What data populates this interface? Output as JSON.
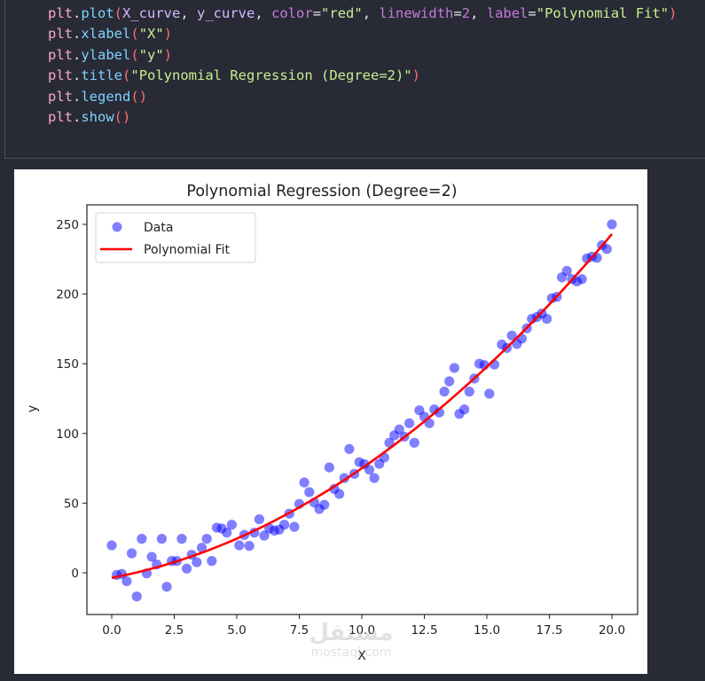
{
  "code_cell": {
    "lines": [
      [
        {
          "t": "plt",
          "c": "obj"
        },
        {
          "t": ".",
          "c": "dot"
        },
        {
          "t": "plot",
          "c": "fn"
        },
        {
          "t": "(",
          "c": "paren"
        },
        {
          "t": "X_curve",
          "c": "var"
        },
        {
          "t": ", ",
          "c": "plain"
        },
        {
          "t": "y_curve",
          "c": "var"
        },
        {
          "t": ", ",
          "c": "plain"
        },
        {
          "t": "color",
          "c": "kw"
        },
        {
          "t": "=",
          "c": "plain"
        },
        {
          "t": "\"red\"",
          "c": "str"
        },
        {
          "t": ", ",
          "c": "plain"
        },
        {
          "t": "linewidth",
          "c": "kw"
        },
        {
          "t": "=",
          "c": "plain"
        },
        {
          "t": "2",
          "c": "num"
        },
        {
          "t": ", ",
          "c": "plain"
        },
        {
          "t": "label",
          "c": "kw"
        },
        {
          "t": "=",
          "c": "plain"
        },
        {
          "t": "\"Polynomial Fit\"",
          "c": "str"
        },
        {
          "t": ")",
          "c": "paren"
        }
      ],
      [
        {
          "t": "plt",
          "c": "obj"
        },
        {
          "t": ".",
          "c": "dot"
        },
        {
          "t": "xlabel",
          "c": "fn"
        },
        {
          "t": "(",
          "c": "paren"
        },
        {
          "t": "\"X\"",
          "c": "str"
        },
        {
          "t": ")",
          "c": "paren"
        }
      ],
      [
        {
          "t": "plt",
          "c": "obj"
        },
        {
          "t": ".",
          "c": "dot"
        },
        {
          "t": "ylabel",
          "c": "fn"
        },
        {
          "t": "(",
          "c": "paren"
        },
        {
          "t": "\"y\"",
          "c": "str"
        },
        {
          "t": ")",
          "c": "paren"
        }
      ],
      [
        {
          "t": "plt",
          "c": "obj"
        },
        {
          "t": ".",
          "c": "dot"
        },
        {
          "t": "title",
          "c": "fn"
        },
        {
          "t": "(",
          "c": "paren"
        },
        {
          "t": "\"Polynomial Regression (Degree=2)\"",
          "c": "str"
        },
        {
          "t": ")",
          "c": "paren"
        }
      ],
      [
        {
          "t": "plt",
          "c": "obj"
        },
        {
          "t": ".",
          "c": "dot"
        },
        {
          "t": "legend",
          "c": "fn"
        },
        {
          "t": "(",
          "c": "paren"
        },
        {
          "t": ")",
          "c": "paren"
        }
      ],
      [
        {
          "t": "plt",
          "c": "obj"
        },
        {
          "t": ".",
          "c": "dot"
        },
        {
          "t": "show",
          "c": "fn"
        },
        {
          "t": "(",
          "c": "paren"
        },
        {
          "t": ")",
          "c": "paren"
        }
      ]
    ]
  },
  "watermark": {
    "arabic": "مستقل",
    "latin": "mostaql.com"
  },
  "colors": {
    "scatter": "#0000ff",
    "scatter_alpha": 0.5,
    "fit": "#ff0000",
    "background": "#282a36"
  },
  "chart_data": {
    "type": "scatter",
    "title": "Polynomial Regression (Degree=2)",
    "xlabel": "X",
    "ylabel": "y",
    "xlim": [
      -0.8,
      21.0
    ],
    "ylim": [
      -30,
      262
    ],
    "xticks": [
      0.0,
      2.5,
      5.0,
      7.5,
      10.0,
      12.5,
      15.0,
      17.5,
      20.0
    ],
    "xtick_labels": [
      "0.0",
      "2.5",
      "5.0",
      "7.5",
      "10.0",
      "12.5",
      "15.0",
      "17.5",
      "20.0"
    ],
    "yticks": [
      0,
      50,
      100,
      150,
      200,
      250
    ],
    "ytick_labels": [
      "0",
      "50",
      "100",
      "150",
      "200",
      "250"
    ],
    "grid": false,
    "legend": {
      "position": "upper left",
      "entries": [
        "Data",
        "Polynomial Fit"
      ]
    },
    "series": [
      {
        "name": "Data",
        "kind": "scatter",
        "x": [
          0.0,
          0.2,
          0.4,
          0.6,
          0.8,
          1.0,
          1.2,
          1.4,
          1.6,
          1.8,
          2.0,
          2.2,
          2.4,
          2.6,
          2.8,
          3.0,
          3.2,
          3.4,
          3.6,
          3.8,
          4.0,
          4.2,
          4.4,
          4.6,
          4.8,
          5.1,
          5.3,
          5.5,
          5.7,
          5.9,
          6.1,
          6.3,
          6.5,
          6.7,
          6.9,
          7.1,
          7.3,
          7.5,
          7.7,
          7.9,
          8.1,
          8.3,
          8.5,
          8.7,
          8.9,
          9.1,
          9.3,
          9.5,
          9.7,
          9.9,
          10.1,
          10.3,
          10.5,
          10.7,
          10.9,
          11.1,
          11.3,
          11.5,
          11.7,
          11.9,
          12.1,
          12.3,
          12.5,
          12.7,
          12.9,
          13.1,
          13.3,
          13.5,
          13.7,
          13.9,
          14.1,
          14.3,
          14.5,
          14.7,
          14.9,
          15.1,
          15.3,
          15.6,
          15.8,
          16.0,
          16.2,
          16.4,
          16.6,
          16.8,
          17.0,
          17.2,
          17.4,
          17.6,
          17.8,
          18.0,
          18.2,
          18.4,
          18.6,
          18.8,
          19.0,
          19.2,
          19.4,
          19.6,
          19.8,
          20.0
        ],
        "y": [
          19.7,
          -1.5,
          -0.8,
          -6,
          14,
          -17,
          24.4,
          -0.4,
          11.5,
          6,
          24.4,
          -10,
          8.5,
          8.5,
          24.4,
          3,
          13,
          7.6,
          18,
          24.4,
          8.5,
          32.4,
          31.8,
          28.8,
          34.5,
          19.7,
          27.2,
          19.3,
          28.8,
          38.4,
          26.7,
          31.8,
          30.3,
          31,
          34.5,
          42.4,
          33,
          49.4,
          64.8,
          57.9,
          50.4,
          45.8,
          48.8,
          75.6,
          60.2,
          56.6,
          68,
          88.8,
          71,
          79.4,
          78,
          74,
          68,
          78.2,
          82.7,
          93.3,
          98.6,
          102.8,
          97.7,
          107.3,
          93.3,
          116.6,
          112,
          107.3,
          117.2,
          115,
          130,
          137.4,
          147,
          114,
          117.2,
          130,
          139.4,
          150,
          149,
          128.5,
          149.4,
          163.8,
          161.3,
          170.2,
          164.2,
          168,
          175.4,
          182.2,
          183.5,
          186,
          182.2,
          197,
          198,
          212,
          216.6,
          210.7,
          209,
          210.7,
          225.5,
          226.8,
          226,
          235,
          232.3,
          250
        ]
      },
      {
        "name": "Polynomial Fit",
        "kind": "line",
        "equation": "y = 0.447x^2 + 3.39x - 3.6",
        "coefficients": {
          "a": 0.447,
          "b": 3.39,
          "c": -3.6
        },
        "x_range": [
          0,
          20
        ]
      }
    ]
  }
}
